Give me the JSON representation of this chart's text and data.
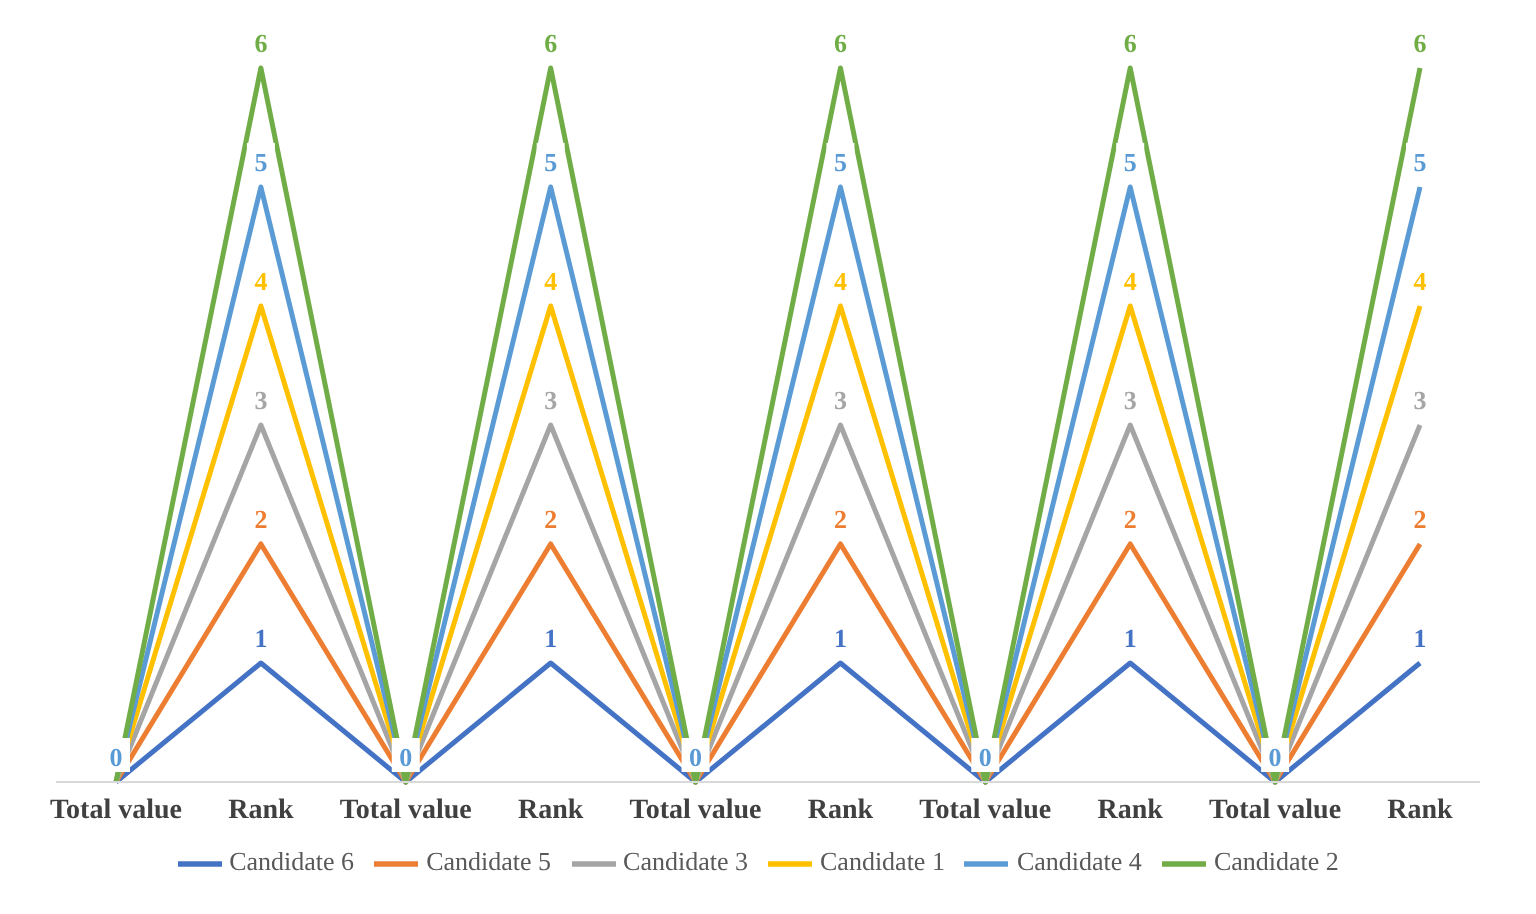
{
  "chart_data": {
    "type": "line",
    "categories": [
      "Total value",
      "Rank",
      "Total value",
      "Rank",
      "Total value",
      "Rank",
      "Total value",
      "Rank",
      "Total value",
      "Rank"
    ],
    "series": [
      {
        "name": "Candidate 6",
        "color": "#4472c4",
        "values": [
          0,
          1,
          0,
          1,
          0,
          1,
          0,
          1,
          0,
          1
        ],
        "value_labels": [
          null,
          "1",
          null,
          "1",
          null,
          "1",
          null,
          "1",
          null,
          "1"
        ]
      },
      {
        "name": "Candidate 5",
        "color": "#ed7d31",
        "values": [
          0,
          2,
          0,
          2,
          0,
          2,
          0,
          2,
          0,
          2
        ],
        "value_labels": [
          null,
          "2",
          null,
          "2",
          null,
          "2",
          null,
          "2",
          null,
          "2"
        ]
      },
      {
        "name": "Candidate 3",
        "color": "#a5a5a5",
        "values": [
          0,
          3,
          0,
          3,
          0,
          3,
          0,
          3,
          0,
          3
        ],
        "value_labels": [
          null,
          "3",
          null,
          "3",
          null,
          "3",
          null,
          "3",
          null,
          "3"
        ]
      },
      {
        "name": "Candidate 1",
        "color": "#ffc000",
        "values": [
          0,
          4,
          0,
          4,
          0,
          4,
          0,
          4,
          0,
          4
        ],
        "value_labels": [
          null,
          "4",
          null,
          "4",
          null,
          "4",
          null,
          "4",
          null,
          "4"
        ]
      },
      {
        "name": "Candidate 4",
        "color": "#5b9bd5",
        "values": [
          0,
          5,
          0,
          5,
          0,
          5,
          0,
          5,
          0,
          5
        ],
        "value_labels": [
          "0",
          "5",
          "0",
          "5",
          "0",
          "5",
          "0",
          "5",
          "0",
          "5"
        ]
      },
      {
        "name": "Candidate 2",
        "color": "#70ad47",
        "values": [
          0,
          6,
          0,
          6,
          0,
          6,
          0,
          6,
          0,
          6
        ],
        "value_labels": [
          null,
          "6",
          null,
          "6",
          null,
          "6",
          null,
          "6",
          null,
          "6"
        ]
      }
    ],
    "grid": false,
    "legend": "bottom",
    "marker": "none",
    "line_style": "solid"
  }
}
